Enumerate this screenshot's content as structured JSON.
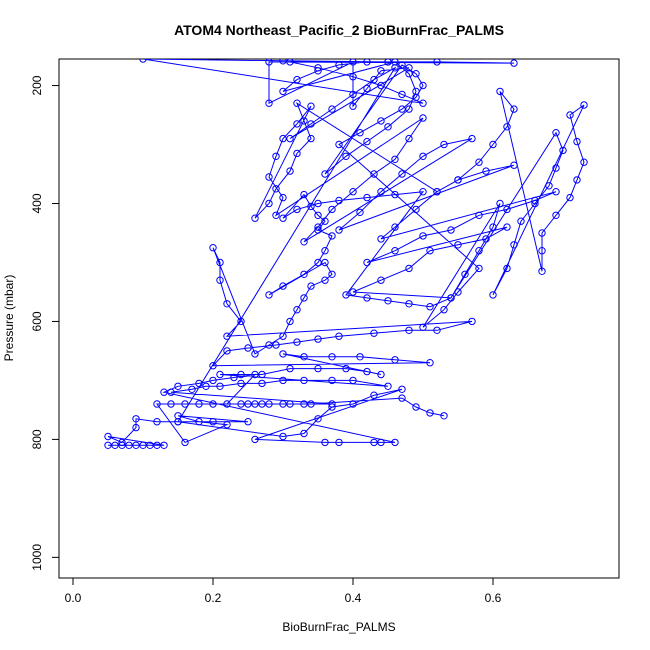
{
  "chart_data": {
    "type": "scatter",
    "title": "ATOM4 Northeast_Pacific_2 BioBurnFrac_PALMS",
    "xlabel": "BioBurnFrac_PALMS",
    "ylabel": "Pressure (mbar)",
    "xlim": [
      -0.02,
      0.78
    ],
    "ylim": [
      1035,
      155
    ],
    "y_reversed": true,
    "x_ticks": [
      0.0,
      0.2,
      0.4,
      0.6
    ],
    "x_tick_labels": [
      "0.0",
      "0.2",
      "0.4",
      "0.6"
    ],
    "y_ticks": [
      200,
      400,
      600,
      800,
      1000
    ],
    "y_tick_labels": [
      "200",
      "400",
      "600",
      "800",
      "1000"
    ],
    "grid": false,
    "legend": "none",
    "series": [
      {
        "color": "#0000ff",
        "marker": "open-circle",
        "connected": true,
        "points": [
          [
            0.05,
            810
          ],
          [
            0.06,
            810
          ],
          [
            0.07,
            810
          ],
          [
            0.08,
            810
          ],
          [
            0.09,
            810
          ],
          [
            0.1,
            810
          ],
          [
            0.11,
            810
          ],
          [
            0.12,
            810
          ],
          [
            0.13,
            810
          ],
          [
            0.05,
            795
          ],
          [
            0.07,
            805
          ],
          [
            0.09,
            780
          ],
          [
            0.09,
            765
          ],
          [
            0.12,
            770
          ],
          [
            0.15,
            770
          ],
          [
            0.2,
            770
          ],
          [
            0.25,
            770
          ],
          [
            0.15,
            760
          ],
          [
            0.18,
            770
          ],
          [
            0.22,
            775
          ],
          [
            0.16,
            805
          ],
          [
            0.12,
            740
          ],
          [
            0.14,
            740
          ],
          [
            0.16,
            740
          ],
          [
            0.18,
            740
          ],
          [
            0.2,
            740
          ],
          [
            0.25,
            740
          ],
          [
            0.27,
            740
          ],
          [
            0.3,
            740
          ],
          [
            0.33,
            740
          ],
          [
            0.37,
            740
          ],
          [
            0.14,
            720
          ],
          [
            0.17,
            715
          ],
          [
            0.19,
            710
          ],
          [
            0.21,
            710
          ],
          [
            0.24,
            705
          ],
          [
            0.27,
            705
          ],
          [
            0.3,
            700
          ],
          [
            0.33,
            700
          ],
          [
            0.37,
            700
          ],
          [
            0.4,
            700
          ],
          [
            0.45,
            710
          ],
          [
            0.21,
            690
          ],
          [
            0.24,
            690
          ],
          [
            0.27,
            690
          ],
          [
            0.31,
            680
          ],
          [
            0.35,
            680
          ],
          [
            0.39,
            680
          ],
          [
            0.42,
            685
          ],
          [
            0.44,
            690
          ],
          [
            0.3,
            655
          ],
          [
            0.33,
            660
          ],
          [
            0.37,
            660
          ],
          [
            0.41,
            660
          ],
          [
            0.46,
            665
          ],
          [
            0.51,
            670
          ],
          [
            0.2,
            675
          ],
          [
            0.22,
            650
          ],
          [
            0.25,
            645
          ],
          [
            0.29,
            640
          ],
          [
            0.32,
            635
          ],
          [
            0.35,
            630
          ],
          [
            0.38,
            625
          ],
          [
            0.43,
            620
          ],
          [
            0.48,
            615
          ],
          [
            0.52,
            615
          ],
          [
            0.57,
            600
          ],
          [
            0.22,
            625
          ],
          [
            0.24,
            600
          ],
          [
            0.22,
            570
          ],
          [
            0.21,
            530
          ],
          [
            0.21,
            500
          ],
          [
            0.2,
            475
          ],
          [
            0.26,
            655
          ],
          [
            0.28,
            640
          ],
          [
            0.3,
            625
          ],
          [
            0.31,
            600
          ],
          [
            0.32,
            580
          ],
          [
            0.33,
            560
          ],
          [
            0.34,
            540
          ],
          [
            0.36,
            530
          ],
          [
            0.37,
            520
          ],
          [
            0.36,
            500
          ],
          [
            0.28,
            555
          ],
          [
            0.3,
            540
          ],
          [
            0.33,
            520
          ],
          [
            0.35,
            500
          ],
          [
            0.36,
            480
          ],
          [
            0.37,
            455
          ],
          [
            0.35,
            445
          ],
          [
            0.36,
            430
          ],
          [
            0.35,
            420
          ],
          [
            0.34,
            405
          ],
          [
            0.33,
            385
          ],
          [
            0.3,
            425
          ],
          [
            0.32,
            410
          ],
          [
            0.35,
            400
          ],
          [
            0.38,
            395
          ],
          [
            0.42,
            390
          ],
          [
            0.46,
            385
          ],
          [
            0.5,
            380
          ],
          [
            0.39,
            555
          ],
          [
            0.42,
            560
          ],
          [
            0.45,
            565
          ],
          [
            0.48,
            570
          ],
          [
            0.51,
            575
          ],
          [
            0.54,
            560
          ],
          [
            0.4,
            550
          ],
          [
            0.44,
            530
          ],
          [
            0.48,
            510
          ],
          [
            0.51,
            480
          ],
          [
            0.55,
            470
          ],
          [
            0.59,
            460
          ],
          [
            0.62,
            440
          ],
          [
            0.42,
            500
          ],
          [
            0.46,
            480
          ],
          [
            0.5,
            455
          ],
          [
            0.54,
            445
          ],
          [
            0.58,
            420
          ],
          [
            0.62,
            410
          ],
          [
            0.66,
            395
          ],
          [
            0.69,
            380
          ],
          [
            0.44,
            460
          ],
          [
            0.46,
            440
          ],
          [
            0.49,
            410
          ],
          [
            0.52,
            380
          ],
          [
            0.55,
            360
          ],
          [
            0.59,
            345
          ],
          [
            0.63,
            335
          ],
          [
            0.38,
            445
          ],
          [
            0.41,
            415
          ],
          [
            0.44,
            380
          ],
          [
            0.47,
            350
          ],
          [
            0.5,
            320
          ],
          [
            0.53,
            300
          ],
          [
            0.57,
            290
          ],
          [
            0.33,
            465
          ],
          [
            0.35,
            440
          ],
          [
            0.37,
            410
          ],
          [
            0.4,
            380
          ],
          [
            0.43,
            350
          ],
          [
            0.46,
            325
          ],
          [
            0.48,
            290
          ],
          [
            0.5,
            255
          ],
          [
            0.29,
            420
          ],
          [
            0.3,
            390
          ],
          [
            0.28,
            355
          ],
          [
            0.29,
            320
          ],
          [
            0.3,
            290
          ],
          [
            0.32,
            265
          ],
          [
            0.34,
            235
          ],
          [
            0.26,
            425
          ],
          [
            0.28,
            400
          ],
          [
            0.29,
            375
          ],
          [
            0.31,
            345
          ],
          [
            0.32,
            315
          ],
          [
            0.34,
            290
          ],
          [
            0.33,
            260
          ],
          [
            0.32,
            230
          ],
          [
            0.52,
            380
          ],
          [
            0.55,
            360
          ],
          [
            0.58,
            330
          ],
          [
            0.6,
            300
          ],
          [
            0.62,
            270
          ],
          [
            0.63,
            240
          ],
          [
            0.61,
            210
          ],
          [
            0.67,
            515
          ],
          [
            0.67,
            480
          ],
          [
            0.67,
            450
          ],
          [
            0.69,
            420
          ],
          [
            0.71,
            390
          ],
          [
            0.72,
            360
          ],
          [
            0.73,
            330
          ],
          [
            0.72,
            295
          ],
          [
            0.71,
            250
          ],
          [
            0.73,
            233
          ],
          [
            0.6,
            555
          ],
          [
            0.62,
            510
          ],
          [
            0.63,
            470
          ],
          [
            0.64,
            430
          ],
          [
            0.66,
            400
          ],
          [
            0.68,
            370
          ],
          [
            0.69,
            340
          ],
          [
            0.7,
            310
          ],
          [
            0.69,
            280
          ],
          [
            0.54,
            560
          ],
          [
            0.56,
            520
          ],
          [
            0.58,
            480
          ],
          [
            0.6,
            440
          ],
          [
            0.61,
            400
          ],
          [
            0.5,
            610
          ],
          [
            0.53,
            580
          ],
          [
            0.55,
            550
          ],
          [
            0.58,
            510
          ],
          [
            0.38,
            300
          ],
          [
            0.41,
            280
          ],
          [
            0.44,
            260
          ],
          [
            0.47,
            240
          ],
          [
            0.49,
            220
          ],
          [
            0.5,
            200
          ],
          [
            0.49,
            180
          ],
          [
            0.47,
            165
          ],
          [
            0.36,
            350
          ],
          [
            0.39,
            320
          ],
          [
            0.42,
            295
          ],
          [
            0.45,
            270
          ],
          [
            0.48,
            240
          ],
          [
            0.49,
            210
          ],
          [
            0.48,
            180
          ],
          [
            0.46,
            160
          ],
          [
            0.3,
            210
          ],
          [
            0.32,
            190
          ],
          [
            0.35,
            175
          ],
          [
            0.38,
            165
          ],
          [
            0.42,
            160
          ],
          [
            0.45,
            160
          ],
          [
            0.31,
            160
          ],
          [
            0.35,
            170
          ],
          [
            0.4,
            185
          ],
          [
            0.44,
            200
          ],
          [
            0.47,
            215
          ],
          [
            0.5,
            230
          ],
          [
            0.1,
            155
          ],
          [
            0.3,
            158
          ],
          [
            0.45,
            160
          ],
          [
            0.52,
            160
          ],
          [
            0.63,
            162
          ],
          [
            0.28,
            160
          ],
          [
            0.28,
            230
          ],
          [
            0.4,
            160
          ],
          [
            0.4,
            235
          ],
          [
            0.42,
            205
          ],
          [
            0.44,
            175
          ],
          [
            0.48,
            170
          ],
          [
            0.31,
            290
          ],
          [
            0.34,
            265
          ],
          [
            0.37,
            240
          ],
          [
            0.4,
            215
          ],
          [
            0.43,
            190
          ],
          [
            0.46,
            170
          ],
          [
            0.15,
            770
          ],
          [
            0.3,
            795
          ],
          [
            0.33,
            790
          ],
          [
            0.35,
            765
          ],
          [
            0.37,
            745
          ],
          [
            0.4,
            740
          ],
          [
            0.43,
            725
          ],
          [
            0.47,
            715
          ],
          [
            0.26,
            800
          ],
          [
            0.36,
            805
          ],
          [
            0.38,
            805
          ],
          [
            0.43,
            805
          ],
          [
            0.44,
            805
          ],
          [
            0.46,
            805
          ],
          [
            0.13,
            720
          ],
          [
            0.15,
            710
          ],
          [
            0.18,
            705
          ],
          [
            0.2,
            700
          ],
          [
            0.23,
            695
          ],
          [
            0.26,
            690
          ],
          [
            0.22,
            740
          ],
          [
            0.24,
            740
          ],
          [
            0.26,
            740
          ],
          [
            0.28,
            740
          ],
          [
            0.31,
            740
          ],
          [
            0.34,
            740
          ],
          [
            0.47,
            730
          ],
          [
            0.49,
            745
          ],
          [
            0.51,
            755
          ],
          [
            0.53,
            760
          ]
        ]
      }
    ]
  }
}
